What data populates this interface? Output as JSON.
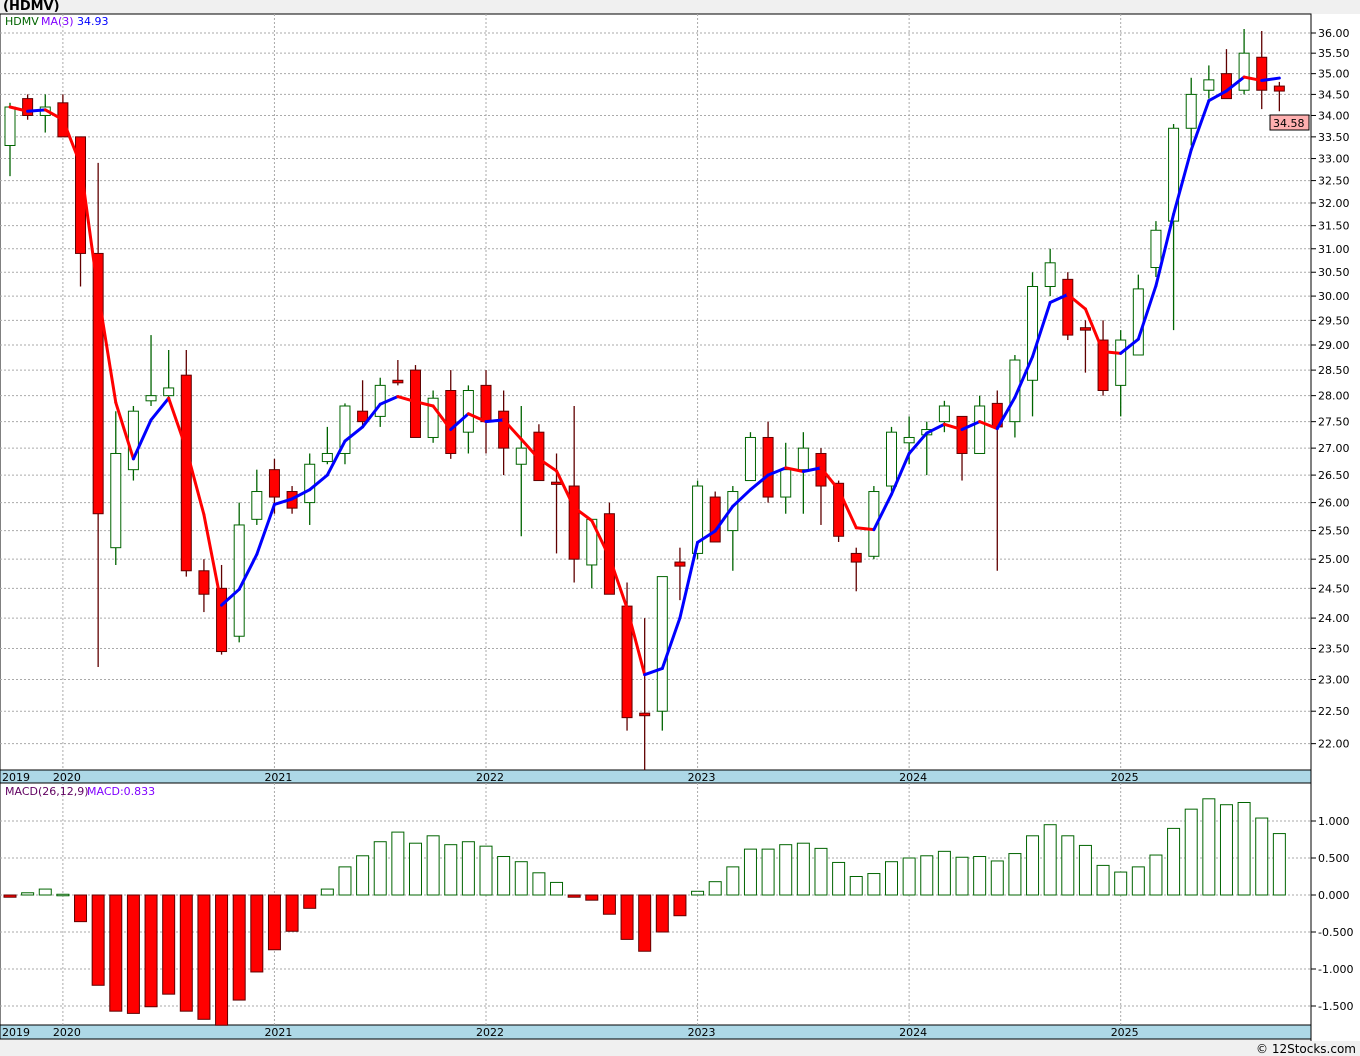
{
  "title": "(HDMV)",
  "footer": "© 12Stocks.com",
  "colors": {
    "up": "#006400",
    "down": "#ff0000",
    "down_edge": "#600000",
    "ma_up": "#0000ff",
    "ma_down": "#ff0000",
    "date_band": "#add8e6",
    "last_price_bg": "#ffb0b0"
  },
  "chart_data": [
    {
      "type": "candlestick",
      "legend": {
        "symbol": "HDMV",
        "ma_label": "MA(3)",
        "ma_value": "34.93"
      },
      "last_price": "34.58",
      "yscale": "log",
      "ylim": [
        21.6,
        36.3
      ],
      "yticks": [
        "36.00",
        "35.50",
        "35.00",
        "34.50",
        "34.00",
        "33.50",
        "33.00",
        "32.50",
        "32.00",
        "31.50",
        "31.00",
        "30.50",
        "30.00",
        "29.50",
        "29.00",
        "28.50",
        "28.00",
        "27.50",
        "27.00",
        "26.50",
        "26.00",
        "25.50",
        "25.00",
        "24.50",
        "24.00",
        "23.50",
        "23.00",
        "22.50",
        "22.00"
      ],
      "xlabels": [
        {
          "label": "2019",
          "index": -0.4
        },
        {
          "label": "2020",
          "index": 3
        },
        {
          "label": "2021",
          "index": 15
        },
        {
          "label": "2022",
          "index": 27
        },
        {
          "label": "2023",
          "index": 39
        },
        {
          "label": "2024",
          "index": 51
        },
        {
          "label": "2025",
          "index": 63
        }
      ],
      "ohlc": [
        [
          33.3,
          34.3,
          32.6,
          34.2
        ],
        [
          34.4,
          34.5,
          33.9,
          34.0
        ],
        [
          34.0,
          34.5,
          33.6,
          34.2
        ],
        [
          34.3,
          34.5,
          33.5,
          33.5
        ],
        [
          33.5,
          33.5,
          30.2,
          30.9
        ],
        [
          30.9,
          32.9,
          23.2,
          25.8
        ],
        [
          25.2,
          27.7,
          24.9,
          26.9
        ],
        [
          26.6,
          27.8,
          26.4,
          27.7
        ],
        [
          27.9,
          29.2,
          27.8,
          28.0
        ],
        [
          28.0,
          28.9,
          27.9,
          28.15
        ],
        [
          28.4,
          28.9,
          24.7,
          24.8
        ],
        [
          24.8,
          25.0,
          24.1,
          24.4
        ],
        [
          24.5,
          24.9,
          23.4,
          23.45
        ],
        [
          23.7,
          26.0,
          23.6,
          25.6
        ],
        [
          25.7,
          26.6,
          25.6,
          26.2
        ],
        [
          26.6,
          26.8,
          25.8,
          26.1
        ],
        [
          26.2,
          26.3,
          25.8,
          25.9
        ],
        [
          26.0,
          26.9,
          25.6,
          26.7
        ],
        [
          26.75,
          27.4,
          26.7,
          26.9
        ],
        [
          26.9,
          27.85,
          26.7,
          27.8
        ],
        [
          27.7,
          28.3,
          27.4,
          27.5
        ],
        [
          27.6,
          28.35,
          27.4,
          28.2
        ],
        [
          28.3,
          28.7,
          28.2,
          28.25
        ],
        [
          28.5,
          28.6,
          27.2,
          27.2
        ],
        [
          27.2,
          28.1,
          27.1,
          27.95
        ],
        [
          28.1,
          28.5,
          26.8,
          26.9
        ],
        [
          27.3,
          28.2,
          26.9,
          28.1
        ],
        [
          28.2,
          28.5,
          26.9,
          27.5
        ],
        [
          27.7,
          28.1,
          26.5,
          27.0
        ],
        [
          26.7,
          27.8,
          25.4,
          27.0
        ],
        [
          27.3,
          27.45,
          26.4,
          26.4
        ],
        [
          26.37,
          26.9,
          25.1,
          26.33
        ],
        [
          26.3,
          27.8,
          24.6,
          25.0
        ],
        [
          24.9,
          25.7,
          24.5,
          25.7
        ],
        [
          25.8,
          26.0,
          24.4,
          24.4
        ],
        [
          24.2,
          24.6,
          22.2,
          22.4
        ],
        [
          22.47,
          24.0,
          21.6,
          22.43
        ],
        [
          22.5,
          24.7,
          22.2,
          24.7
        ],
        [
          24.95,
          25.2,
          24.3,
          24.88
        ],
        [
          25.1,
          26.4,
          25.0,
          26.3
        ],
        [
          26.1,
          26.2,
          25.3,
          25.3
        ],
        [
          25.5,
          26.3,
          24.8,
          26.2
        ],
        [
          26.4,
          27.3,
          26.4,
          27.2
        ],
        [
          27.2,
          27.5,
          26.0,
          26.1
        ],
        [
          26.1,
          27.1,
          25.8,
          26.6
        ],
        [
          26.6,
          27.3,
          25.8,
          27.0
        ],
        [
          26.9,
          27.0,
          25.6,
          26.3
        ],
        [
          26.35,
          26.4,
          25.3,
          25.4
        ],
        [
          25.1,
          25.2,
          24.45,
          24.95
        ],
        [
          25.05,
          26.3,
          25.0,
          26.2
        ],
        [
          26.3,
          27.4,
          26.2,
          27.3
        ],
        [
          27.1,
          27.6,
          26.7,
          27.2
        ],
        [
          27.25,
          27.5,
          26.5,
          27.35
        ],
        [
          27.5,
          27.9,
          27.3,
          27.8
        ],
        [
          27.6,
          27.6,
          26.4,
          26.9
        ],
        [
          26.9,
          28.0,
          26.9,
          27.8
        ],
        [
          27.85,
          28.1,
          24.8,
          27.4
        ],
        [
          27.5,
          28.8,
          27.2,
          28.7
        ],
        [
          28.3,
          30.5,
          27.6,
          30.2
        ],
        [
          30.2,
          31.0,
          30.0,
          30.7
        ],
        [
          30.35,
          30.5,
          29.1,
          29.2
        ],
        [
          29.35,
          29.5,
          28.45,
          29.3
        ],
        [
          29.1,
          29.5,
          28.0,
          28.1
        ],
        [
          28.2,
          29.3,
          27.6,
          29.1
        ],
        [
          28.8,
          30.45,
          28.8,
          30.15
        ],
        [
          30.6,
          31.6,
          30.4,
          31.4
        ],
        [
          31.6,
          33.8,
          29.3,
          33.7
        ],
        [
          33.7,
          34.9,
          33.3,
          34.5
        ],
        [
          34.6,
          35.2,
          34.4,
          34.85
        ],
        [
          35.0,
          35.6,
          34.4,
          34.4
        ],
        [
          34.6,
          36.1,
          34.5,
          35.5
        ],
        [
          35.4,
          36.05,
          34.15,
          34.6
        ],
        [
          34.7,
          34.8,
          34.1,
          34.58
        ]
      ]
    },
    {
      "type": "bar",
      "legend": {
        "label": "MACD(26,12,9)",
        "value": "MACD:0.833"
      },
      "ylim": [
        -1.75,
        1.35
      ],
      "yticks": [
        "1.000",
        "0.500",
        "0.000",
        "-0.500",
        "-1.000",
        "-1.500"
      ],
      "xlabels": [
        {
          "label": "2019",
          "index": -0.4
        },
        {
          "label": "2020",
          "index": 3
        },
        {
          "label": "2021",
          "index": 15
        },
        {
          "label": "2022",
          "index": 27
        },
        {
          "label": "2023",
          "index": 39
        },
        {
          "label": "2024",
          "index": 51
        },
        {
          "label": "2025",
          "index": 63
        }
      ],
      "values": [
        -0.03,
        0.03,
        0.08,
        0.01,
        -0.36,
        -1.22,
        -1.57,
        -1.6,
        -1.51,
        -1.34,
        -1.57,
        -1.68,
        -1.76,
        -1.42,
        -1.04,
        -0.74,
        -0.49,
        -0.18,
        0.08,
        0.38,
        0.53,
        0.72,
        0.85,
        0.7,
        0.8,
        0.68,
        0.72,
        0.66,
        0.52,
        0.45,
        0.3,
        0.17,
        -0.03,
        -0.07,
        -0.26,
        -0.6,
        -0.76,
        -0.5,
        -0.28,
        0.05,
        0.18,
        0.38,
        0.62,
        0.62,
        0.68,
        0.7,
        0.63,
        0.44,
        0.25,
        0.29,
        0.45,
        0.5,
        0.53,
        0.59,
        0.51,
        0.52,
        0.46,
        0.56,
        0.8,
        0.95,
        0.8,
        0.67,
        0.4,
        0.31,
        0.38,
        0.54,
        0.9,
        1.16,
        1.3,
        1.22,
        1.25,
        1.04,
        0.83
      ]
    }
  ]
}
